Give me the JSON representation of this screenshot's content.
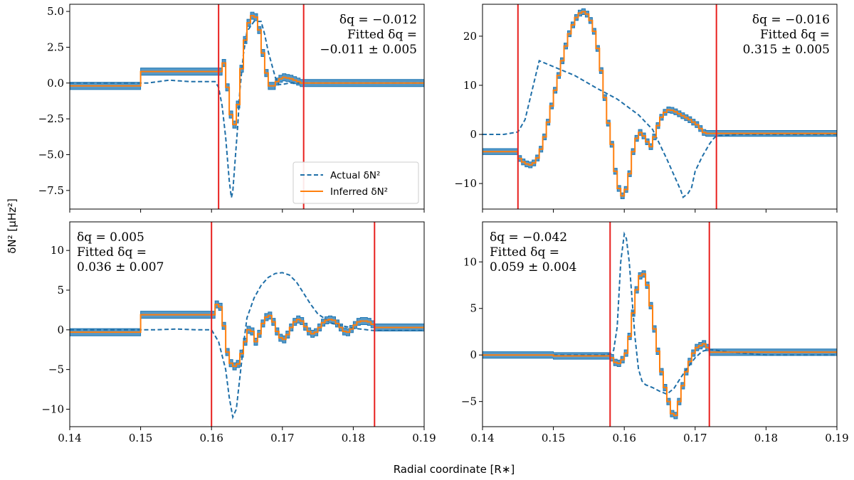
{
  "figure": {
    "xlabel": "Radial coordinate [R∗]",
    "ylabel": "δN² [μHz²]"
  },
  "colors": {
    "actual": "#1f6fa8",
    "inferred": "#ff7f0e",
    "band": "#1f77b4",
    "boundary": "#e8201e"
  },
  "chart_data": [
    {
      "type": "line",
      "panel": "top-left",
      "xlim": [
        0.14,
        0.19
      ],
      "ylim": [
        -8.8,
        5.5
      ],
      "xticks": [
        0.14,
        0.15,
        0.16,
        0.17,
        0.18,
        0.19
      ],
      "yticks": [
        -7.5,
        -5.0,
        -2.5,
        0.0,
        2.5,
        5.0
      ],
      "ytick_labels": [
        "−7.5",
        "−5.0",
        "−2.5",
        "0.0",
        "2.5",
        "5.0"
      ],
      "show_xtick_labels": false,
      "boundaries": [
        0.161,
        0.173
      ],
      "annotation": {
        "delta_q": "δq = −0.012",
        "fitted_label": "Fitted δq =",
        "fitted_value": "−0.011 ± 0.005",
        "align": "right"
      },
      "legend": {
        "position": "lower-right",
        "entries": [
          "Actual δN²",
          "Inferred δN²"
        ]
      },
      "actual": {
        "x": [
          0.14,
          0.148,
          0.151,
          0.154,
          0.157,
          0.159,
          0.1605,
          0.161,
          0.1615,
          0.162,
          0.1625,
          0.1628,
          0.163,
          0.1633,
          0.1637,
          0.164,
          0.1645,
          0.165,
          0.166,
          0.167,
          0.1675,
          0.168,
          0.169,
          0.1695,
          0.17,
          0.171,
          0.172,
          0.173,
          0.18,
          0.19
        ],
        "y": [
          0.0,
          0.0,
          0.0,
          0.2,
          0.1,
          0.1,
          0.1,
          -0.3,
          -1.6,
          -3.8,
          -6.8,
          -8.0,
          -7.6,
          -5.6,
          -3.0,
          -0.5,
          2.0,
          3.6,
          4.3,
          4.3,
          3.4,
          2.2,
          0.4,
          -0.1,
          -0.1,
          0.0,
          0.0,
          0.0,
          0.0,
          0.0
        ]
      },
      "inferred": {
        "step": 0.0005,
        "x": [
          0.14,
          0.15,
          0.15,
          0.161,
          0.1615,
          0.162,
          0.1625,
          0.163,
          0.1635,
          0.164,
          0.1645,
          0.165,
          0.1655,
          0.166,
          0.1665,
          0.167,
          0.1675,
          0.168,
          0.1685,
          0.169,
          0.1695,
          0.17,
          0.1705,
          0.171,
          0.1715,
          0.172,
          0.1725,
          0.173,
          0.19
        ],
        "y": [
          -0.2,
          -0.2,
          0.8,
          0.8,
          1.4,
          -0.3,
          -2.2,
          -2.9,
          -1.5,
          1.0,
          3.0,
          4.2,
          4.7,
          4.6,
          3.7,
          2.1,
          0.7,
          -0.2,
          -0.2,
          0.1,
          0.3,
          0.4,
          0.35,
          0.3,
          0.2,
          0.1,
          0.0,
          0.0,
          0.0
        ],
        "band_halfwidth": 0.25
      }
    },
    {
      "type": "line",
      "panel": "top-right",
      "xlim": [
        0.14,
        0.19
      ],
      "ylim": [
        -15.2,
        26.5
      ],
      "xticks": [
        0.14,
        0.15,
        0.16,
        0.17,
        0.18,
        0.19
      ],
      "yticks": [
        -10,
        0,
        10,
        20
      ],
      "ytick_labels": [
        "−10",
        "0",
        "10",
        "20"
      ],
      "show_xtick_labels": false,
      "boundaries": [
        0.145,
        0.173
      ],
      "annotation": {
        "delta_q": "δq = −0.016",
        "fitted_label": "Fitted δq =",
        "fitted_value": "0.315 ± 0.005",
        "align": "right"
      },
      "actual": {
        "x": [
          0.14,
          0.143,
          0.145,
          0.146,
          0.147,
          0.148,
          0.15,
          0.153,
          0.156,
          0.159,
          0.162,
          0.164,
          0.166,
          0.168,
          0.1683,
          0.169,
          0.1695,
          0.17,
          0.171,
          0.172,
          0.1725,
          0.173,
          0.176,
          0.19
        ],
        "y": [
          0.0,
          0.0,
          0.5,
          3.0,
          9.0,
          15.0,
          13.8,
          12.0,
          9.5,
          7.2,
          4.0,
          1.0,
          -5.0,
          -11.5,
          -12.8,
          -12.0,
          -10.8,
          -7.5,
          -4.5,
          -2.0,
          -1.0,
          -0.3,
          0.0,
          0.0
        ]
      },
      "inferred": {
        "step": 0.0005,
        "x": [
          0.14,
          0.145,
          0.1455,
          0.146,
          0.1465,
          0.147,
          0.1475,
          0.148,
          0.1485,
          0.149,
          0.1495,
          0.15,
          0.1505,
          0.151,
          0.1515,
          0.152,
          0.1525,
          0.153,
          0.1535,
          0.154,
          0.1545,
          0.155,
          0.1555,
          0.156,
          0.1565,
          0.157,
          0.1575,
          0.158,
          0.1585,
          0.159,
          0.1595,
          0.16,
          0.1605,
          0.161,
          0.1615,
          0.162,
          0.1625,
          0.163,
          0.1635,
          0.164,
          0.1645,
          0.165,
          0.1655,
          0.166,
          0.1665,
          0.167,
          0.1675,
          0.168,
          0.1685,
          0.169,
          0.1695,
          0.17,
          0.1705,
          0.171,
          0.1715,
          0.172,
          0.1725,
          0.173,
          0.19
        ],
        "y": [
          -3.5,
          -4.9,
          -5.6,
          -6.0,
          -6.2,
          -5.8,
          -4.8,
          -3.0,
          -0.5,
          2.5,
          5.8,
          9.0,
          12.0,
          15.0,
          18.0,
          20.5,
          22.3,
          23.8,
          24.7,
          25.0,
          24.5,
          23.2,
          21.0,
          17.5,
          13.0,
          7.5,
          2.3,
          -2.0,
          -7.5,
          -11.0,
          -12.5,
          -11.2,
          -8.0,
          -3.5,
          -0.8,
          0.4,
          -0.3,
          -1.5,
          -2.5,
          -0.5,
          1.8,
          3.5,
          4.5,
          5.0,
          4.9,
          4.6,
          4.2,
          3.8,
          3.4,
          3.0,
          2.5,
          2.0,
          1.2,
          0.4,
          0.2,
          0.2,
          0.2,
          0.2,
          0.2
        ],
        "band_halfwidth": 0.6
      }
    },
    {
      "type": "line",
      "panel": "bottom-left",
      "xlim": [
        0.14,
        0.19
      ],
      "ylim": [
        -12.2,
        13.6
      ],
      "xticks": [
        0.14,
        0.15,
        0.16,
        0.17,
        0.18,
        0.19
      ],
      "yticks": [
        -10,
        -5,
        0,
        5,
        10
      ],
      "ytick_labels": [
        "−10",
        "−5",
        "0",
        "5",
        "10"
      ],
      "show_xtick_labels": true,
      "boundaries": [
        0.16,
        0.183
      ],
      "annotation": {
        "delta_q": "δq = 0.005",
        "fitted_label": "Fitted δq =",
        "fitted_value": "0.036 ± 0.007",
        "align": "left"
      },
      "actual": {
        "x": [
          0.14,
          0.15,
          0.152,
          0.155,
          0.158,
          0.16,
          0.161,
          0.162,
          0.1625,
          0.163,
          0.1635,
          0.164,
          0.1645,
          0.165,
          0.166,
          0.167,
          0.168,
          0.169,
          0.17,
          0.171,
          0.172,
          0.173,
          0.174,
          0.175,
          0.177,
          0.18,
          0.183,
          0.19
        ],
        "y": [
          0.0,
          0.0,
          0.0,
          0.1,
          0.0,
          0.0,
          -1.5,
          -5.0,
          -8.5,
          -11.0,
          -10.0,
          -6.0,
          -2.0,
          1.5,
          4.0,
          5.6,
          6.6,
          7.1,
          7.2,
          6.9,
          6.0,
          4.6,
          3.2,
          2.0,
          0.8,
          0.2,
          -0.1,
          -0.1
        ]
      },
      "inferred": {
        "step": 0.0005,
        "x": [
          0.14,
          0.15,
          0.15,
          0.16,
          0.1605,
          0.161,
          0.1615,
          0.162,
          0.1625,
          0.163,
          0.1635,
          0.164,
          0.1645,
          0.165,
          0.1655,
          0.166,
          0.1665,
          0.167,
          0.1675,
          0.168,
          0.1685,
          0.169,
          0.1695,
          0.17,
          0.1705,
          0.171,
          0.1715,
          0.172,
          0.1725,
          0.173,
          0.1735,
          0.174,
          0.1745,
          0.175,
          0.1755,
          0.176,
          0.1765,
          0.177,
          0.1775,
          0.178,
          0.1785,
          0.179,
          0.1795,
          0.18,
          0.1805,
          0.181,
          0.1815,
          0.182,
          0.1825,
          0.183,
          0.19
        ],
        "y": [
          -0.3,
          -0.3,
          1.9,
          1.9,
          3.2,
          2.9,
          0.5,
          -2.8,
          -4.2,
          -4.6,
          -4.3,
          -3.0,
          -1.5,
          0.0,
          -0.2,
          -1.5,
          -0.5,
          0.8,
          1.6,
          1.8,
          1.0,
          -0.2,
          -1.0,
          -1.2,
          -0.6,
          0.3,
          1.0,
          1.3,
          1.1,
          0.4,
          -0.2,
          -0.5,
          -0.3,
          0.3,
          0.9,
          1.2,
          1.3,
          1.2,
          0.8,
          0.3,
          -0.2,
          -0.3,
          0.1,
          0.6,
          1.0,
          1.1,
          1.1,
          1.0,
          0.7,
          0.3,
          0.3
        ],
        "band_halfwidth": 0.45
      }
    },
    {
      "type": "line",
      "panel": "bottom-right",
      "xlim": [
        0.14,
        0.19
      ],
      "ylim": [
        -7.7,
        14.3
      ],
      "xticks": [
        0.14,
        0.15,
        0.16,
        0.17,
        0.18,
        0.19
      ],
      "yticks": [
        -5,
        0,
        5,
        10
      ],
      "ytick_labels": [
        "−5",
        "0",
        "5",
        "10"
      ],
      "show_xtick_labels": true,
      "boundaries": [
        0.158,
        0.172
      ],
      "annotation": {
        "delta_q": "δq = −0.042",
        "fitted_label": "Fitted δq =",
        "fitted_value": "0.059 ± 0.004",
        "align": "left"
      },
      "actual": {
        "x": [
          0.15,
          0.155,
          0.157,
          0.158,
          0.1585,
          0.159,
          0.1595,
          0.16,
          0.1603,
          0.1607,
          0.161,
          0.1615,
          0.162,
          0.1625,
          0.163,
          0.164,
          0.165,
          0.166,
          0.167,
          0.168,
          0.169,
          0.17,
          0.171,
          0.172,
          0.175,
          0.18,
          0.19
        ],
        "y": [
          0.0,
          0.0,
          0.0,
          0.1,
          0.5,
          3.0,
          10.0,
          13.0,
          12.5,
          10.0,
          7.0,
          2.0,
          -1.5,
          -2.8,
          -3.2,
          -3.5,
          -3.9,
          -4.2,
          -3.6,
          -2.4,
          -1.3,
          -0.3,
          0.4,
          0.6,
          0.3,
          0.0,
          0.0
        ]
      },
      "inferred": {
        "step": 0.0005,
        "x": [
          0.14,
          0.15,
          0.15,
          0.158,
          0.1585,
          0.159,
          0.1595,
          0.16,
          0.1605,
          0.161,
          0.1615,
          0.162,
          0.1625,
          0.163,
          0.1635,
          0.164,
          0.1645,
          0.165,
          0.1655,
          0.166,
          0.1665,
          0.167,
          0.1675,
          0.168,
          0.1685,
          0.169,
          0.1695,
          0.17,
          0.1705,
          0.171,
          0.1715,
          0.172,
          0.19
        ],
        "y": [
          0.0,
          0.0,
          -0.1,
          -0.3,
          -0.8,
          -0.9,
          -0.5,
          0.2,
          2.0,
          4.5,
          7.0,
          8.5,
          8.7,
          7.5,
          5.3,
          2.8,
          0.4,
          -1.8,
          -3.5,
          -5.0,
          -6.3,
          -6.5,
          -5.0,
          -3.3,
          -1.8,
          -0.7,
          0.2,
          0.8,
          1.0,
          1.2,
          0.8,
          0.3,
          0.3
        ],
        "band_halfwidth": 0.35
      }
    }
  ]
}
